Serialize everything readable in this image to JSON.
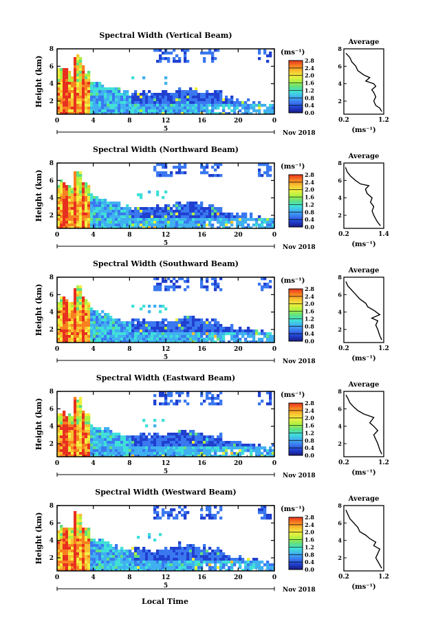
{
  "figure": {
    "xlabel": "Local Time",
    "date_label": "Nov 2018",
    "day_label": "5",
    "colorbar_unit": "(ms⁻¹)",
    "avg_unit": "(ms⁻¹)",
    "ylabel": "Height (km)",
    "avg_title": "Average",
    "colormap": [
      "#1a1a80",
      "#2040d0",
      "#3a78f0",
      "#40b0f0",
      "#40e0d8",
      "#60e080",
      "#b0f040",
      "#f0f040",
      "#f8c030",
      "#f88020",
      "#e83020"
    ]
  },
  "chart_data": [
    {
      "type": "heatmap",
      "title": "Spectral Width (Vertical Beam)",
      "xlabel": "Local Time",
      "ylabel": "Height (km)",
      "x_ticks": [
        "0",
        "4",
        "8",
        "12",
        "16",
        "20",
        "0"
      ],
      "x_range": [
        0,
        24
      ],
      "y_ticks": [
        "2",
        "4",
        "6",
        "8"
      ],
      "y_range": [
        0.5,
        8
      ],
      "colorbar_ticks": [
        "0.0",
        "0.4",
        "0.8",
        "1.2",
        "1.6",
        "2.0",
        "2.4",
        "2.8"
      ],
      "colorbar_range": [
        0.0,
        2.8
      ],
      "avg_profile": {
        "title": "Average",
        "xlabel": "(ms⁻¹)",
        "x_ticks": [
          "0.2",
          "1.2"
        ],
        "x_range": [
          0.2,
          1.2
        ],
        "points": [
          [
            1.15,
            0.8
          ],
          [
            1.1,
            1.2
          ],
          [
            1.0,
            1.5
          ],
          [
            0.95,
            2.0
          ],
          [
            1.0,
            2.5
          ],
          [
            0.95,
            3.0
          ],
          [
            0.9,
            3.3
          ],
          [
            1.0,
            3.7
          ],
          [
            0.95,
            4.0
          ],
          [
            0.75,
            4.3
          ],
          [
            0.85,
            4.7
          ],
          [
            0.7,
            5.0
          ],
          [
            0.55,
            5.5
          ],
          [
            0.5,
            6.0
          ],
          [
            0.4,
            6.5
          ],
          [
            0.35,
            7.0
          ],
          [
            0.25,
            7.5
          ]
        ]
      }
    },
    {
      "type": "heatmap",
      "title": "Spectral Width (Northward Beam)",
      "xlabel": "Local Time",
      "ylabel": "Height (km)",
      "x_ticks": [
        "0",
        "4",
        "8",
        "12",
        "16",
        "20",
        "0"
      ],
      "x_range": [
        0,
        24
      ],
      "y_ticks": [
        "2",
        "4",
        "6",
        "8"
      ],
      "y_range": [
        0.5,
        8
      ],
      "colorbar_ticks": [
        "0.0",
        "0.4",
        "0.8",
        "1.2",
        "1.6",
        "2.0",
        "2.4",
        "2.8"
      ],
      "colorbar_range": [
        0.0,
        2.8
      ],
      "avg_profile": {
        "title": "Average",
        "xlabel": "(ms⁻¹)",
        "x_ticks": [
          "0.2",
          "1.4"
        ],
        "x_range": [
          0.2,
          1.4
        ],
        "points": [
          [
            1.3,
            0.8
          ],
          [
            1.2,
            1.3
          ],
          [
            1.1,
            2.0
          ],
          [
            1.05,
            2.5
          ],
          [
            1.1,
            3.0
          ],
          [
            1.0,
            3.5
          ],
          [
            1.05,
            4.0
          ],
          [
            0.9,
            4.5
          ],
          [
            0.85,
            5.0
          ],
          [
            0.95,
            5.4
          ],
          [
            0.7,
            5.6
          ],
          [
            0.55,
            6.0
          ],
          [
            0.4,
            6.5
          ],
          [
            0.3,
            7.0
          ],
          [
            0.25,
            7.5
          ]
        ]
      }
    },
    {
      "type": "heatmap",
      "title": "Spectral Width (Southward Beam)",
      "xlabel": "Local Time",
      "ylabel": "Height (km)",
      "x_ticks": [
        "0",
        "4",
        "8",
        "12",
        "16",
        "20",
        "0"
      ],
      "x_range": [
        0,
        24
      ],
      "y_ticks": [
        "2",
        "4",
        "6",
        "8"
      ],
      "y_range": [
        0.5,
        8
      ],
      "colorbar_ticks": [
        "0.0",
        "0.4",
        "0.8",
        "1.2",
        "1.6",
        "2.0",
        "2.4",
        "2.8"
      ],
      "colorbar_range": [
        0.0,
        2.8
      ],
      "avg_profile": {
        "title": "Average",
        "xlabel": "(ms⁻¹)",
        "x_ticks": [
          "0.2",
          "1.2"
        ],
        "x_range": [
          0.2,
          1.2
        ],
        "points": [
          [
            1.15,
            0.8
          ],
          [
            1.1,
            1.3
          ],
          [
            1.05,
            2.0
          ],
          [
            1.0,
            2.5
          ],
          [
            1.05,
            3.0
          ],
          [
            0.9,
            3.3
          ],
          [
            1.1,
            3.7
          ],
          [
            0.95,
            4.2
          ],
          [
            0.8,
            4.6
          ],
          [
            0.75,
            5.0
          ],
          [
            0.6,
            5.5
          ],
          [
            0.5,
            6.0
          ],
          [
            0.4,
            6.5
          ],
          [
            0.3,
            7.0
          ],
          [
            0.25,
            7.5
          ]
        ]
      }
    },
    {
      "type": "heatmap",
      "title": "Spectral Width (Eastward Beam)",
      "xlabel": "Local Time",
      "ylabel": "Height (km)",
      "x_ticks": [
        "0",
        "4",
        "8",
        "12",
        "16",
        "20",
        "0"
      ],
      "x_range": [
        0,
        24
      ],
      "y_ticks": [
        "2",
        "4",
        "6",
        "8"
      ],
      "y_range": [
        0.5,
        8
      ],
      "colorbar_ticks": [
        "0.0",
        "0.4",
        "0.8",
        "1.2",
        "1.6",
        "2.0",
        "2.4",
        "2.8"
      ],
      "colorbar_range": [
        0.0,
        2.8
      ],
      "avg_profile": {
        "title": "Average",
        "xlabel": "(ms⁻¹)",
        "x_ticks": [
          "0.2",
          "1.2"
        ],
        "x_range": [
          0.2,
          1.2
        ],
        "points": [
          [
            1.15,
            0.8
          ],
          [
            1.1,
            1.3
          ],
          [
            1.05,
            2.0
          ],
          [
            1.0,
            2.5
          ],
          [
            0.95,
            3.0
          ],
          [
            1.05,
            3.5
          ],
          [
            0.95,
            4.0
          ],
          [
            0.85,
            4.4
          ],
          [
            0.95,
            5.0
          ],
          [
            0.7,
            5.4
          ],
          [
            0.55,
            5.8
          ],
          [
            0.45,
            6.2
          ],
          [
            0.35,
            6.7
          ],
          [
            0.3,
            7.2
          ],
          [
            0.25,
            7.6
          ]
        ]
      }
    },
    {
      "type": "heatmap",
      "title": "Spectral Width (Westward Beam)",
      "xlabel": "Local Time",
      "ylabel": "Height (km)",
      "x_ticks": [
        "0",
        "4",
        "8",
        "12",
        "16",
        "20",
        "0"
      ],
      "x_range": [
        0,
        24
      ],
      "y_ticks": [
        "2",
        "4",
        "6",
        "8"
      ],
      "y_range": [
        0.5,
        8
      ],
      "colorbar_ticks": [
        "0.0",
        "0.4",
        "0.8",
        "1.2",
        "1.6",
        "2.0",
        "2.4",
        "2.8"
      ],
      "colorbar_range": [
        0.0,
        2.8
      ],
      "avg_profile": {
        "title": "Average",
        "xlabel": "(ms⁻¹)",
        "x_ticks": [
          "0.2",
          "1.2"
        ],
        "x_range": [
          0.2,
          1.2
        ],
        "points": [
          [
            1.15,
            0.8
          ],
          [
            1.1,
            1.2
          ],
          [
            1.0,
            2.0
          ],
          [
            1.05,
            2.5
          ],
          [
            1.1,
            3.0
          ],
          [
            0.95,
            3.4
          ],
          [
            1.0,
            3.8
          ],
          [
            0.85,
            4.2
          ],
          [
            0.75,
            4.6
          ],
          [
            0.6,
            5.0
          ],
          [
            0.55,
            5.5
          ],
          [
            0.45,
            6.0
          ],
          [
            0.35,
            6.5
          ],
          [
            0.3,
            7.0
          ],
          [
            0.25,
            7.5
          ]
        ]
      }
    }
  ]
}
